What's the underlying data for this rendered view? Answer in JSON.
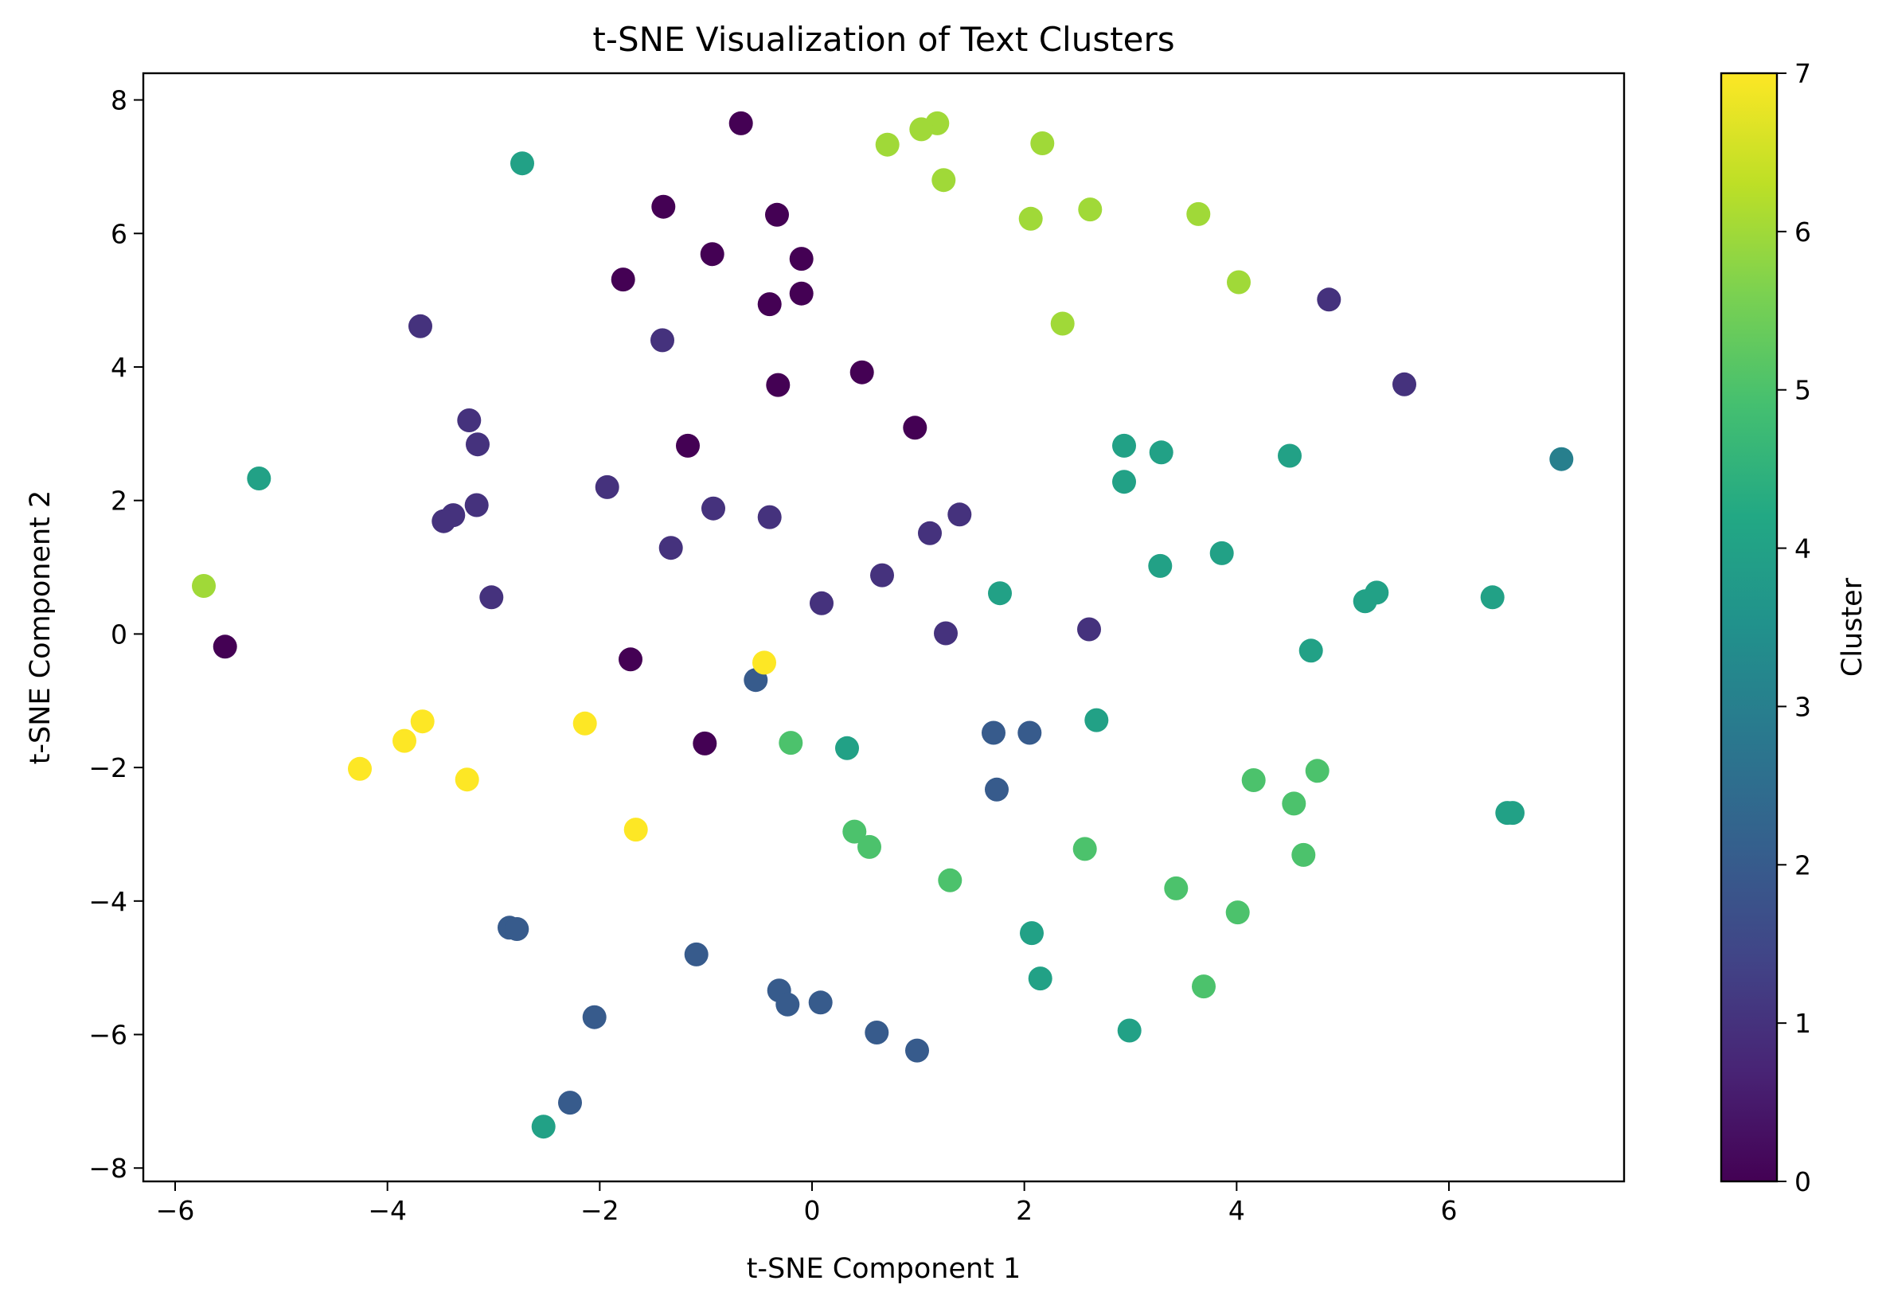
{
  "chart_data": {
    "type": "scatter",
    "title": "t-SNE Visualization of Text Clusters",
    "xlabel": "t-SNE Component 1",
    "ylabel": "t-SNE Component 2",
    "xlim": [
      -6.3,
      7.65
    ],
    "ylim": [
      -8.2,
      8.4
    ],
    "xticks": [
      -6,
      -4,
      -2,
      0,
      2,
      4,
      6
    ],
    "xtick_labels": [
      "−6",
      "−4",
      "−2",
      "0",
      "2",
      "4",
      "6"
    ],
    "yticks": [
      -8,
      -6,
      -4,
      -2,
      0,
      2,
      4,
      6,
      8
    ],
    "ytick_labels": [
      "−8",
      "−6",
      "−4",
      "−2",
      "0",
      "2",
      "4",
      "6",
      "8"
    ],
    "grid": false,
    "colormap": "viridis",
    "colorbar": {
      "label": "Cluster",
      "range": [
        0,
        7
      ],
      "ticks": [
        0,
        1,
        2,
        3,
        4,
        5,
        6,
        7
      ],
      "tick_labels": [
        "0",
        "1",
        "2",
        "3",
        "4",
        "5",
        "6",
        "7"
      ]
    },
    "points": [
      {
        "x": -0.67,
        "y": 7.65,
        "cluster": 0
      },
      {
        "x": -1.4,
        "y": 6.4,
        "cluster": 0
      },
      {
        "x": -0.33,
        "y": 6.28,
        "cluster": 0
      },
      {
        "x": -0.94,
        "y": 5.69,
        "cluster": 0
      },
      {
        "x": -1.78,
        "y": 5.31,
        "cluster": 0
      },
      {
        "x": -0.1,
        "y": 5.62,
        "cluster": 0
      },
      {
        "x": -0.4,
        "y": 4.94,
        "cluster": 0
      },
      {
        "x": -0.1,
        "y": 5.1,
        "cluster": 0
      },
      {
        "x": -0.32,
        "y": 3.73,
        "cluster": 0
      },
      {
        "x": 0.47,
        "y": 3.92,
        "cluster": 0
      },
      {
        "x": 0.97,
        "y": 3.09,
        "cluster": 0
      },
      {
        "x": -1.17,
        "y": 2.82,
        "cluster": 0
      },
      {
        "x": -5.53,
        "y": -0.19,
        "cluster": 0
      },
      {
        "x": -1.71,
        "y": -0.38,
        "cluster": 0
      },
      {
        "x": -1.01,
        "y": -1.64,
        "cluster": 0
      },
      {
        "x": -3.69,
        "y": 4.61,
        "cluster": 1
      },
      {
        "x": -1.41,
        "y": 4.4,
        "cluster": 1
      },
      {
        "x": -3.23,
        "y": 3.2,
        "cluster": 1
      },
      {
        "x": -3.15,
        "y": 2.84,
        "cluster": 1
      },
      {
        "x": -1.93,
        "y": 2.2,
        "cluster": 1
      },
      {
        "x": -3.16,
        "y": 1.93,
        "cluster": 1
      },
      {
        "x": -3.38,
        "y": 1.78,
        "cluster": 1
      },
      {
        "x": -3.47,
        "y": 1.69,
        "cluster": 1
      },
      {
        "x": -0.93,
        "y": 1.88,
        "cluster": 1
      },
      {
        "x": -0.4,
        "y": 1.75,
        "cluster": 1
      },
      {
        "x": -1.33,
        "y": 1.29,
        "cluster": 1
      },
      {
        "x": -3.02,
        "y": 0.55,
        "cluster": 1
      },
      {
        "x": 0.09,
        "y": 0.46,
        "cluster": 1
      },
      {
        "x": 0.66,
        "y": 0.88,
        "cluster": 1
      },
      {
        "x": 1.11,
        "y": 1.51,
        "cluster": 1
      },
      {
        "x": 1.39,
        "y": 1.79,
        "cluster": 1
      },
      {
        "x": 1.26,
        "y": 0.01,
        "cluster": 1
      },
      {
        "x": 2.61,
        "y": 0.07,
        "cluster": 1
      },
      {
        "x": 4.87,
        "y": 5.01,
        "cluster": 1
      },
      {
        "x": 5.58,
        "y": 3.74,
        "cluster": 1
      },
      {
        "x": -0.53,
        "y": -0.69,
        "cluster": 2
      },
      {
        "x": 1.71,
        "y": -1.48,
        "cluster": 2
      },
      {
        "x": 2.05,
        "y": -1.48,
        "cluster": 2
      },
      {
        "x": 1.74,
        "y": -2.33,
        "cluster": 2
      },
      {
        "x": -2.85,
        "y": -4.4,
        "cluster": 2
      },
      {
        "x": -2.78,
        "y": -4.42,
        "cluster": 2
      },
      {
        "x": -1.09,
        "y": -4.8,
        "cluster": 2
      },
      {
        "x": -0.31,
        "y": -5.34,
        "cluster": 2
      },
      {
        "x": -0.23,
        "y": -5.55,
        "cluster": 2
      },
      {
        "x": 0.08,
        "y": -5.52,
        "cluster": 2
      },
      {
        "x": -2.05,
        "y": -5.74,
        "cluster": 2
      },
      {
        "x": 0.61,
        "y": -5.97,
        "cluster": 2
      },
      {
        "x": 0.99,
        "y": -6.24,
        "cluster": 2
      },
      {
        "x": -2.28,
        "y": -7.02,
        "cluster": 2
      },
      {
        "x": 7.06,
        "y": 2.62,
        "cluster": 3
      },
      {
        "x": -2.73,
        "y": 7.05,
        "cluster": 4
      },
      {
        "x": -5.21,
        "y": 2.33,
        "cluster": 4
      },
      {
        "x": 2.94,
        "y": 2.82,
        "cluster": 4
      },
      {
        "x": 3.29,
        "y": 2.72,
        "cluster": 4
      },
      {
        "x": 4.5,
        "y": 2.67,
        "cluster": 4
      },
      {
        "x": 2.94,
        "y": 2.28,
        "cluster": 4
      },
      {
        "x": 3.86,
        "y": 1.21,
        "cluster": 4
      },
      {
        "x": 3.28,
        "y": 1.02,
        "cluster": 4
      },
      {
        "x": 1.77,
        "y": 0.61,
        "cluster": 4
      },
      {
        "x": 5.32,
        "y": 0.62,
        "cluster": 4
      },
      {
        "x": 5.21,
        "y": 0.49,
        "cluster": 4
      },
      {
        "x": 6.41,
        "y": 0.55,
        "cluster": 4
      },
      {
        "x": 4.7,
        "y": -0.25,
        "cluster": 4
      },
      {
        "x": 0.33,
        "y": -1.71,
        "cluster": 4
      },
      {
        "x": 2.68,
        "y": -1.29,
        "cluster": 4
      },
      {
        "x": 6.55,
        "y": -2.68,
        "cluster": 4
      },
      {
        "x": 6.6,
        "y": -2.68,
        "cluster": 4
      },
      {
        "x": 2.07,
        "y": -4.48,
        "cluster": 4
      },
      {
        "x": 2.15,
        "y": -5.16,
        "cluster": 4
      },
      {
        "x": 2.99,
        "y": -5.94,
        "cluster": 4
      },
      {
        "x": -2.53,
        "y": -7.38,
        "cluster": 4
      },
      {
        "x": -0.2,
        "y": -1.63,
        "cluster": 5
      },
      {
        "x": 4.16,
        "y": -2.19,
        "cluster": 5
      },
      {
        "x": 4.76,
        "y": -2.05,
        "cluster": 5
      },
      {
        "x": 4.54,
        "y": -2.54,
        "cluster": 5
      },
      {
        "x": 0.4,
        "y": -2.96,
        "cluster": 5
      },
      {
        "x": 0.54,
        "y": -3.19,
        "cluster": 5
      },
      {
        "x": 2.57,
        "y": -3.22,
        "cluster": 5
      },
      {
        "x": 4.63,
        "y": -3.31,
        "cluster": 5
      },
      {
        "x": 1.3,
        "y": -3.69,
        "cluster": 5
      },
      {
        "x": 3.43,
        "y": -3.81,
        "cluster": 5
      },
      {
        "x": 4.01,
        "y": -4.17,
        "cluster": 5
      },
      {
        "x": 3.69,
        "y": -5.28,
        "cluster": 5
      },
      {
        "x": 1.18,
        "y": 7.65,
        "cluster": 6
      },
      {
        "x": 1.03,
        "y": 7.56,
        "cluster": 6
      },
      {
        "x": 0.71,
        "y": 7.33,
        "cluster": 6
      },
      {
        "x": 2.17,
        "y": 7.35,
        "cluster": 6
      },
      {
        "x": 1.24,
        "y": 6.8,
        "cluster": 6
      },
      {
        "x": 2.62,
        "y": 6.36,
        "cluster": 6
      },
      {
        "x": 3.64,
        "y": 6.29,
        "cluster": 6
      },
      {
        "x": 2.06,
        "y": 6.22,
        "cluster": 6
      },
      {
        "x": 4.02,
        "y": 5.27,
        "cluster": 6
      },
      {
        "x": 2.36,
        "y": 4.65,
        "cluster": 6
      },
      {
        "x": -5.73,
        "y": 0.72,
        "cluster": 6
      },
      {
        "x": -0.45,
        "y": -0.43,
        "cluster": 7
      },
      {
        "x": -3.67,
        "y": -1.31,
        "cluster": 7
      },
      {
        "x": -2.14,
        "y": -1.34,
        "cluster": 7
      },
      {
        "x": -3.84,
        "y": -1.6,
        "cluster": 7
      },
      {
        "x": -4.26,
        "y": -2.02,
        "cluster": 7
      },
      {
        "x": -3.25,
        "y": -2.18,
        "cluster": 7
      },
      {
        "x": -1.66,
        "y": -2.93,
        "cluster": 7
      }
    ]
  }
}
